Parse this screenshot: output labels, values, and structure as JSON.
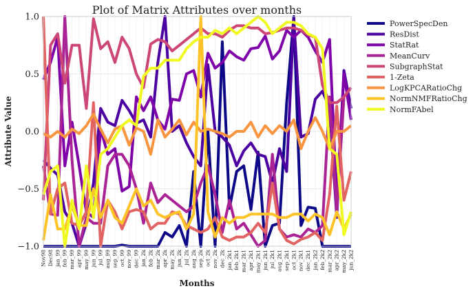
{
  "chart_data": {
    "type": "line",
    "title": "Plot of Matrix Attributes over months",
    "xlabel": "Months",
    "ylabel": "Attribute Value",
    "ylim": [
      -1.0,
      1.0
    ],
    "yticks": [
      "−1.0",
      "−0.5",
      "0.0",
      "0.5",
      "1.0"
    ],
    "ytick_values": [
      -1.0,
      -0.5,
      0.0,
      0.5,
      1.0
    ],
    "grid": true,
    "legend_position": "outside-right",
    "categories": [
      "Nov98",
      "Dec98",
      "jan_99",
      "feb_99",
      "mar_99",
      "apr_99",
      "may_99",
      "jun_99",
      "jul_99",
      "aug_99",
      "sep_99",
      "oct_99",
      "nov_99",
      "dec_99",
      "jan_2k",
      "feb_2k",
      "mar_2k",
      "apr_2k",
      "may_2k",
      "jun_2k",
      "jul_2k",
      "aug_2k",
      "sep_2k",
      "oct_2k",
      "nov_2k",
      "dec_2k",
      "jan_2k1",
      "feb_2k1",
      "mar_2k1",
      "apr_2k1",
      "may_2k1",
      "jun_2k1",
      "jul_2k1",
      "aug_2k1",
      "sep_2k1",
      "oct_2k1",
      "nov_2k1",
      "dec_2k1",
      "jan_2k2",
      "feb_2k2",
      "mar_2k2",
      "apr_2k2",
      "may_2k2",
      "jun_2k2"
    ],
    "x_tick_labels": [
      "Nov98",
      "Dec98",
      "jan_99",
      "feb_99",
      "mar_99",
      "apr_99",
      "may_99",
      "jun_99",
      "jul_99",
      "aug_99",
      "sep_99",
      "oct_99",
      "nov_99",
      "dec_99",
      "jan_2k",
      "feb_2k",
      "mar_2k",
      "apr_2k",
      "may_2k",
      "jun_2k",
      "jul_2k",
      "aug_2k",
      "sep_2k",
      "oct_2k",
      "nov_2k",
      "dec_2k",
      "jan_2k1",
      "feb_2k1",
      "mar_2k1",
      "apr_2k1",
      "may_2k1",
      "jun_2k1",
      "jul_2k1",
      "aug_2k1",
      "sep_2k1",
      "oct_2k1",
      "nov_2k1",
      "dec_2k1",
      "jan_2k2",
      "feb_2k2",
      "mar_2k2",
      "apr_2k2",
      "may_2k2",
      "jun_2k2"
    ],
    "series": [
      {
        "name": "PowerSpecDen",
        "color": "#0d0887",
        "values": [
          -1.0,
          -1.0,
          -1.0,
          -1.0,
          -1.0,
          -1.0,
          -1.0,
          -1.0,
          -1.0,
          -1.0,
          -1.0,
          -0.99,
          -1.0,
          -1.0,
          -1.0,
          -1.0,
          -1.0,
          -0.88,
          -0.92,
          -0.82,
          -1.0,
          -0.35,
          -1.0,
          0.0,
          -1.0,
          0.78,
          -0.67,
          -0.35,
          -0.3,
          -0.68,
          -0.18,
          -1.0,
          -0.82,
          -0.8,
          0.25,
          1.0,
          -0.82,
          -0.66,
          -0.67,
          -1.0,
          -1.0,
          -1.0,
          -1.0,
          -1.0
        ]
      },
      {
        "name": "ResDist",
        "color": "#4c02a1",
        "values": [
          -0.25,
          -0.32,
          -0.38,
          -0.7,
          -0.8,
          -1.0,
          -0.8,
          -0.45,
          0.2,
          0.08,
          0.05,
          0.27,
          0.18,
          0.07,
          0.1,
          -0.05,
          0.6,
          1.0,
          0.0,
          0.05,
          -0.1,
          -0.22,
          -0.3,
          0.58,
          0.0,
          -0.05,
          -0.12,
          -0.3,
          -0.17,
          -0.1,
          -0.2,
          -0.22,
          -0.45,
          -0.15,
          -0.35,
          0.98,
          -0.05,
          -0.02,
          0.28,
          0.35,
          0.2,
          -0.75,
          0.53,
          0.2
        ]
      },
      {
        "name": "StatRat",
        "color": "#7e03a8",
        "values": [
          0.45,
          0.6,
          0.82,
          -0.3,
          0.08,
          -0.3,
          -0.7,
          -0.75,
          0.02,
          -0.2,
          -0.15,
          -0.52,
          -0.48,
          0.3,
          0.18,
          0.3,
          0.1,
          0.02,
          0.28,
          0.27,
          0.5,
          0.53,
          0.3,
          0.68,
          0.55,
          0.6,
          0.7,
          0.65,
          0.62,
          0.72,
          0.73,
          0.83,
          0.63,
          0.7,
          0.88,
          0.82,
          0.88,
          0.82,
          0.7,
          0.6,
          0.8,
          -0.6,
          0.5,
          0.1
        ]
      },
      {
        "name": "MeanCurv",
        "color": "#a92395",
        "values": [
          -0.3,
          -0.72,
          -0.73,
          1.0,
          -0.25,
          -1.0,
          -0.75,
          -0.8,
          -0.8,
          -0.3,
          -0.2,
          -0.2,
          -0.3,
          -0.5,
          -0.8,
          -0.45,
          -0.62,
          -0.55,
          -0.6,
          -0.65,
          -0.7,
          -0.65,
          -0.45,
          -0.3,
          -0.55,
          -0.88,
          -0.6,
          -0.85,
          -0.8,
          -0.9,
          -1.0,
          -0.95,
          -0.2,
          -0.85,
          -0.92,
          -0.9,
          -0.92,
          -0.85,
          -0.88,
          -0.82,
          0.3,
          -0.7,
          0.3,
          0.38
        ]
      },
      {
        "name": "SubgraphStat",
        "color": "#cc4778",
        "values": [
          -0.6,
          0.75,
          0.85,
          0.42,
          0.75,
          0.75,
          0.2,
          0.98,
          0.72,
          0.78,
          0.6,
          0.82,
          0.72,
          0.5,
          0.38,
          0.76,
          0.8,
          0.78,
          0.7,
          0.75,
          0.8,
          0.85,
          0.9,
          0.85,
          0.85,
          0.82,
          0.88,
          0.92,
          0.92,
          0.9,
          0.9,
          0.85,
          0.86,
          0.88,
          0.9,
          0.9,
          0.88,
          0.84,
          0.82,
          0.4,
          0.25,
          0.25,
          0.3,
          0.38
        ]
      },
      {
        "name": "1-Zeta",
        "color": "#e16462",
        "values": [
          1.0,
          -0.72,
          -0.5,
          -0.45,
          -0.8,
          -0.82,
          -0.7,
          0.25,
          -1.0,
          -0.6,
          -0.7,
          -0.85,
          -0.7,
          -0.68,
          -0.7,
          -0.85,
          -0.8,
          -0.8,
          -0.7,
          -0.72,
          -0.82,
          -0.85,
          -0.88,
          -0.85,
          -0.75,
          -0.92,
          -0.95,
          -0.92,
          -0.92,
          -0.88,
          -0.8,
          -0.88,
          -0.45,
          -0.85,
          -0.95,
          -0.98,
          -0.94,
          -0.92,
          -0.88,
          -0.95,
          -0.55,
          0.22,
          -0.6,
          -0.35
        ]
      },
      {
        "name": "LogKPCARatioChg",
        "color": "#f89540",
        "values": [
          -0.02,
          -0.05,
          0.0,
          -0.05,
          0.02,
          -0.02,
          0.05,
          0.15,
          0.02,
          -0.1,
          0.02,
          0.05,
          -0.12,
          0.03,
          0.0,
          -0.2,
          0.1,
          -0.05,
          0.02,
          0.1,
          -0.03,
          0.08,
          0.0,
          0.02,
          0.0,
          -0.02,
          -0.05,
          0.0,
          0.0,
          0.08,
          -0.05,
          0.05,
          -0.02,
          0.05,
          0.0,
          0.1,
          -0.15,
          0.0,
          0.12,
          0.0,
          -0.15,
          0.0,
          0.0,
          0.05
        ]
      },
      {
        "name": "NormNMFRatioChg",
        "color": "#fdc328",
        "values": [
          -0.95,
          -0.55,
          -0.85,
          -0.85,
          -0.65,
          -0.82,
          -0.82,
          -0.5,
          -0.75,
          -0.6,
          -0.75,
          -0.8,
          -0.65,
          -0.5,
          -0.65,
          -0.6,
          -0.72,
          -0.75,
          -0.72,
          -0.7,
          -0.85,
          -0.72,
          1.0,
          -0.7,
          -0.92,
          -0.75,
          -0.8,
          -0.75,
          -0.75,
          -0.72,
          -0.72,
          -0.72,
          -0.72,
          -0.75,
          -0.75,
          -0.72,
          -0.72,
          -0.78,
          -0.72,
          -0.75,
          -0.9,
          -0.7,
          -0.85,
          -0.72
        ]
      },
      {
        "name": "NormFAbel",
        "color": "#f0f921",
        "values": [
          -0.55,
          -0.35,
          -0.3,
          -1.0,
          -0.6,
          -0.85,
          -0.3,
          -0.75,
          -0.2,
          -0.15,
          -0.05,
          0.05,
          0.1,
          0.05,
          0.48,
          0.55,
          0.55,
          0.62,
          0.62,
          0.62,
          0.72,
          0.78,
          0.82,
          0.82,
          0.88,
          0.85,
          0.9,
          0.85,
          0.9,
          0.95,
          1.0,
          0.95,
          0.85,
          0.9,
          0.95,
          0.95,
          0.92,
          0.85,
          0.82,
          0.72,
          -0.15,
          -0.2,
          -0.9,
          -0.7
        ]
      }
    ]
  }
}
